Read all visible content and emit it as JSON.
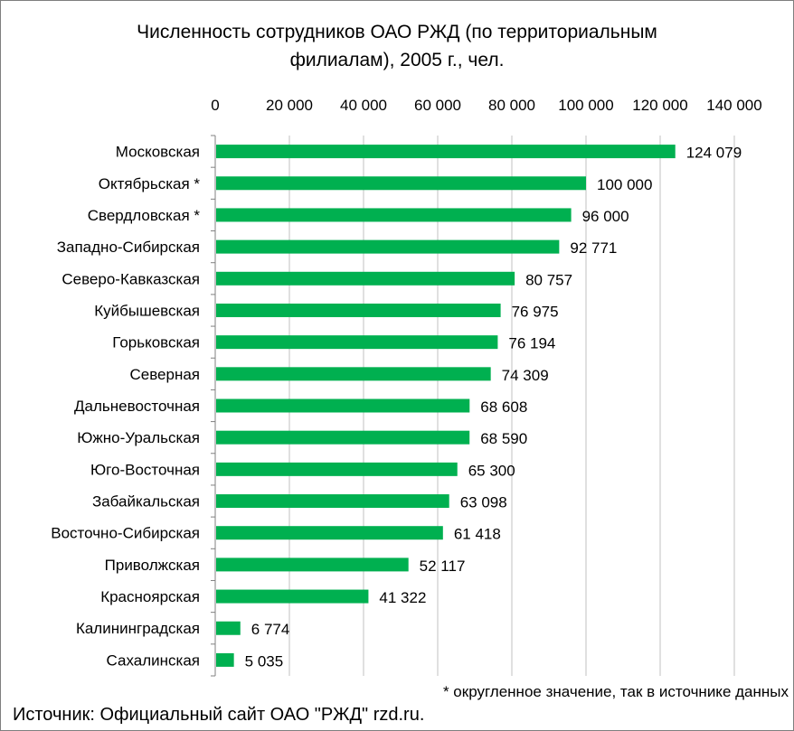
{
  "title_line1": "Численность сотрудников ОАО РЖД (по территориальным",
  "title_line2": "филиалам), 2005 г., чел.",
  "footnote": "* округленное значение, так в источнике данных",
  "source": "Источник: Официальный сайт ОАО \"РЖД\" rzd.ru.",
  "colors": {
    "bar": "#00b050",
    "grid": "#c0c0c0",
    "axis": "#808080"
  },
  "chart_data": {
    "type": "bar",
    "orientation": "horizontal",
    "title": "Численность сотрудников ОАО РЖД (по территориальным филиалам), 2005 г., чел.",
    "xlim": [
      0,
      140000
    ],
    "x_ticks": [
      0,
      20000,
      40000,
      60000,
      80000,
      100000,
      120000,
      140000
    ],
    "x_tick_labels": [
      "0",
      "20 000",
      "40 000",
      "60 000",
      "80 000",
      "100 000",
      "120 000",
      "140 000"
    ],
    "axis_position": "top",
    "grid": true,
    "legend": false,
    "categories": [
      "Московская",
      "Октябрьская *",
      "Свердловская *",
      "Западно-Сибирская",
      "Северо-Кавказская",
      "Куйбышевская",
      "Горьковская",
      "Северная",
      "Дальневосточная",
      "Южно-Уральская",
      "Юго-Восточная",
      "Забайкальская",
      "Восточно-Сибирская",
      "Приволжская",
      "Красноярская",
      "Калининградская",
      "Сахалинская"
    ],
    "values": [
      124079,
      100000,
      96000,
      92771,
      80757,
      76975,
      76194,
      74309,
      68608,
      68590,
      65300,
      63098,
      61418,
      52117,
      41322,
      6774,
      5035
    ],
    "value_labels": [
      "124 079",
      "100 000",
      "96 000",
      "92 771",
      "80 757",
      "76 975",
      "76 194",
      "74 309",
      "68 608",
      "68 590",
      "65 300",
      "63 098",
      "61 418",
      "52 117",
      "41 322",
      "6 774",
      "5 035"
    ]
  }
}
